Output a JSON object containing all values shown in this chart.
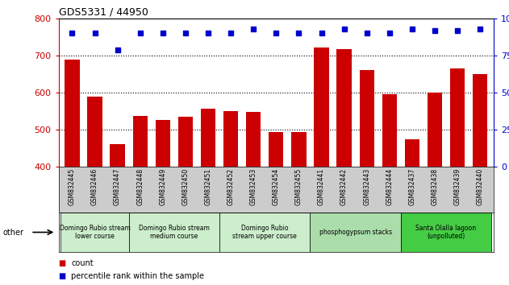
{
  "title": "GDS5331 / 44950",
  "categories": [
    "GSM832445",
    "GSM832446",
    "GSM832447",
    "GSM832448",
    "GSM832449",
    "GSM832450",
    "GSM832451",
    "GSM832452",
    "GSM832453",
    "GSM832454",
    "GSM832455",
    "GSM832441",
    "GSM832442",
    "GSM832443",
    "GSM832444",
    "GSM832437",
    "GSM832438",
    "GSM832439",
    "GSM832440"
  ],
  "counts": [
    690,
    590,
    460,
    538,
    527,
    535,
    557,
    551,
    548,
    494,
    494,
    722,
    717,
    660,
    595,
    474,
    600,
    665,
    651
  ],
  "percentiles": [
    90,
    90,
    79,
    90,
    90,
    90,
    90,
    90,
    93,
    90,
    90,
    90,
    93,
    90,
    90,
    93,
    92,
    92,
    93
  ],
  "ylim_left": [
    400,
    800
  ],
  "ylim_right": [
    0,
    100
  ],
  "yticks_left": [
    400,
    500,
    600,
    700,
    800
  ],
  "yticks_right": [
    0,
    25,
    50,
    75,
    100
  ],
  "bar_color": "#cc0000",
  "dot_color": "#0000cc",
  "groups": [
    {
      "label": "Domingo Rubio stream\nlower course",
      "start": 0,
      "end": 3
    },
    {
      "label": "Domingo Rubio stream\nmedium course",
      "start": 3,
      "end": 7
    },
    {
      "label": "Domingo Rubio\nstream upper course",
      "start": 7,
      "end": 11
    },
    {
      "label": "phosphogypsum stacks",
      "start": 11,
      "end": 15
    },
    {
      "label": "Santa Olalla lagoon\n(unpolluted)",
      "start": 15,
      "end": 19
    }
  ],
  "group_colors": [
    "#cceecc",
    "#cceecc",
    "#cceecc",
    "#aaddaa",
    "#44cc44"
  ],
  "xtick_bg": "#cccccc",
  "grid_yticks": [
    500,
    600,
    700
  ]
}
